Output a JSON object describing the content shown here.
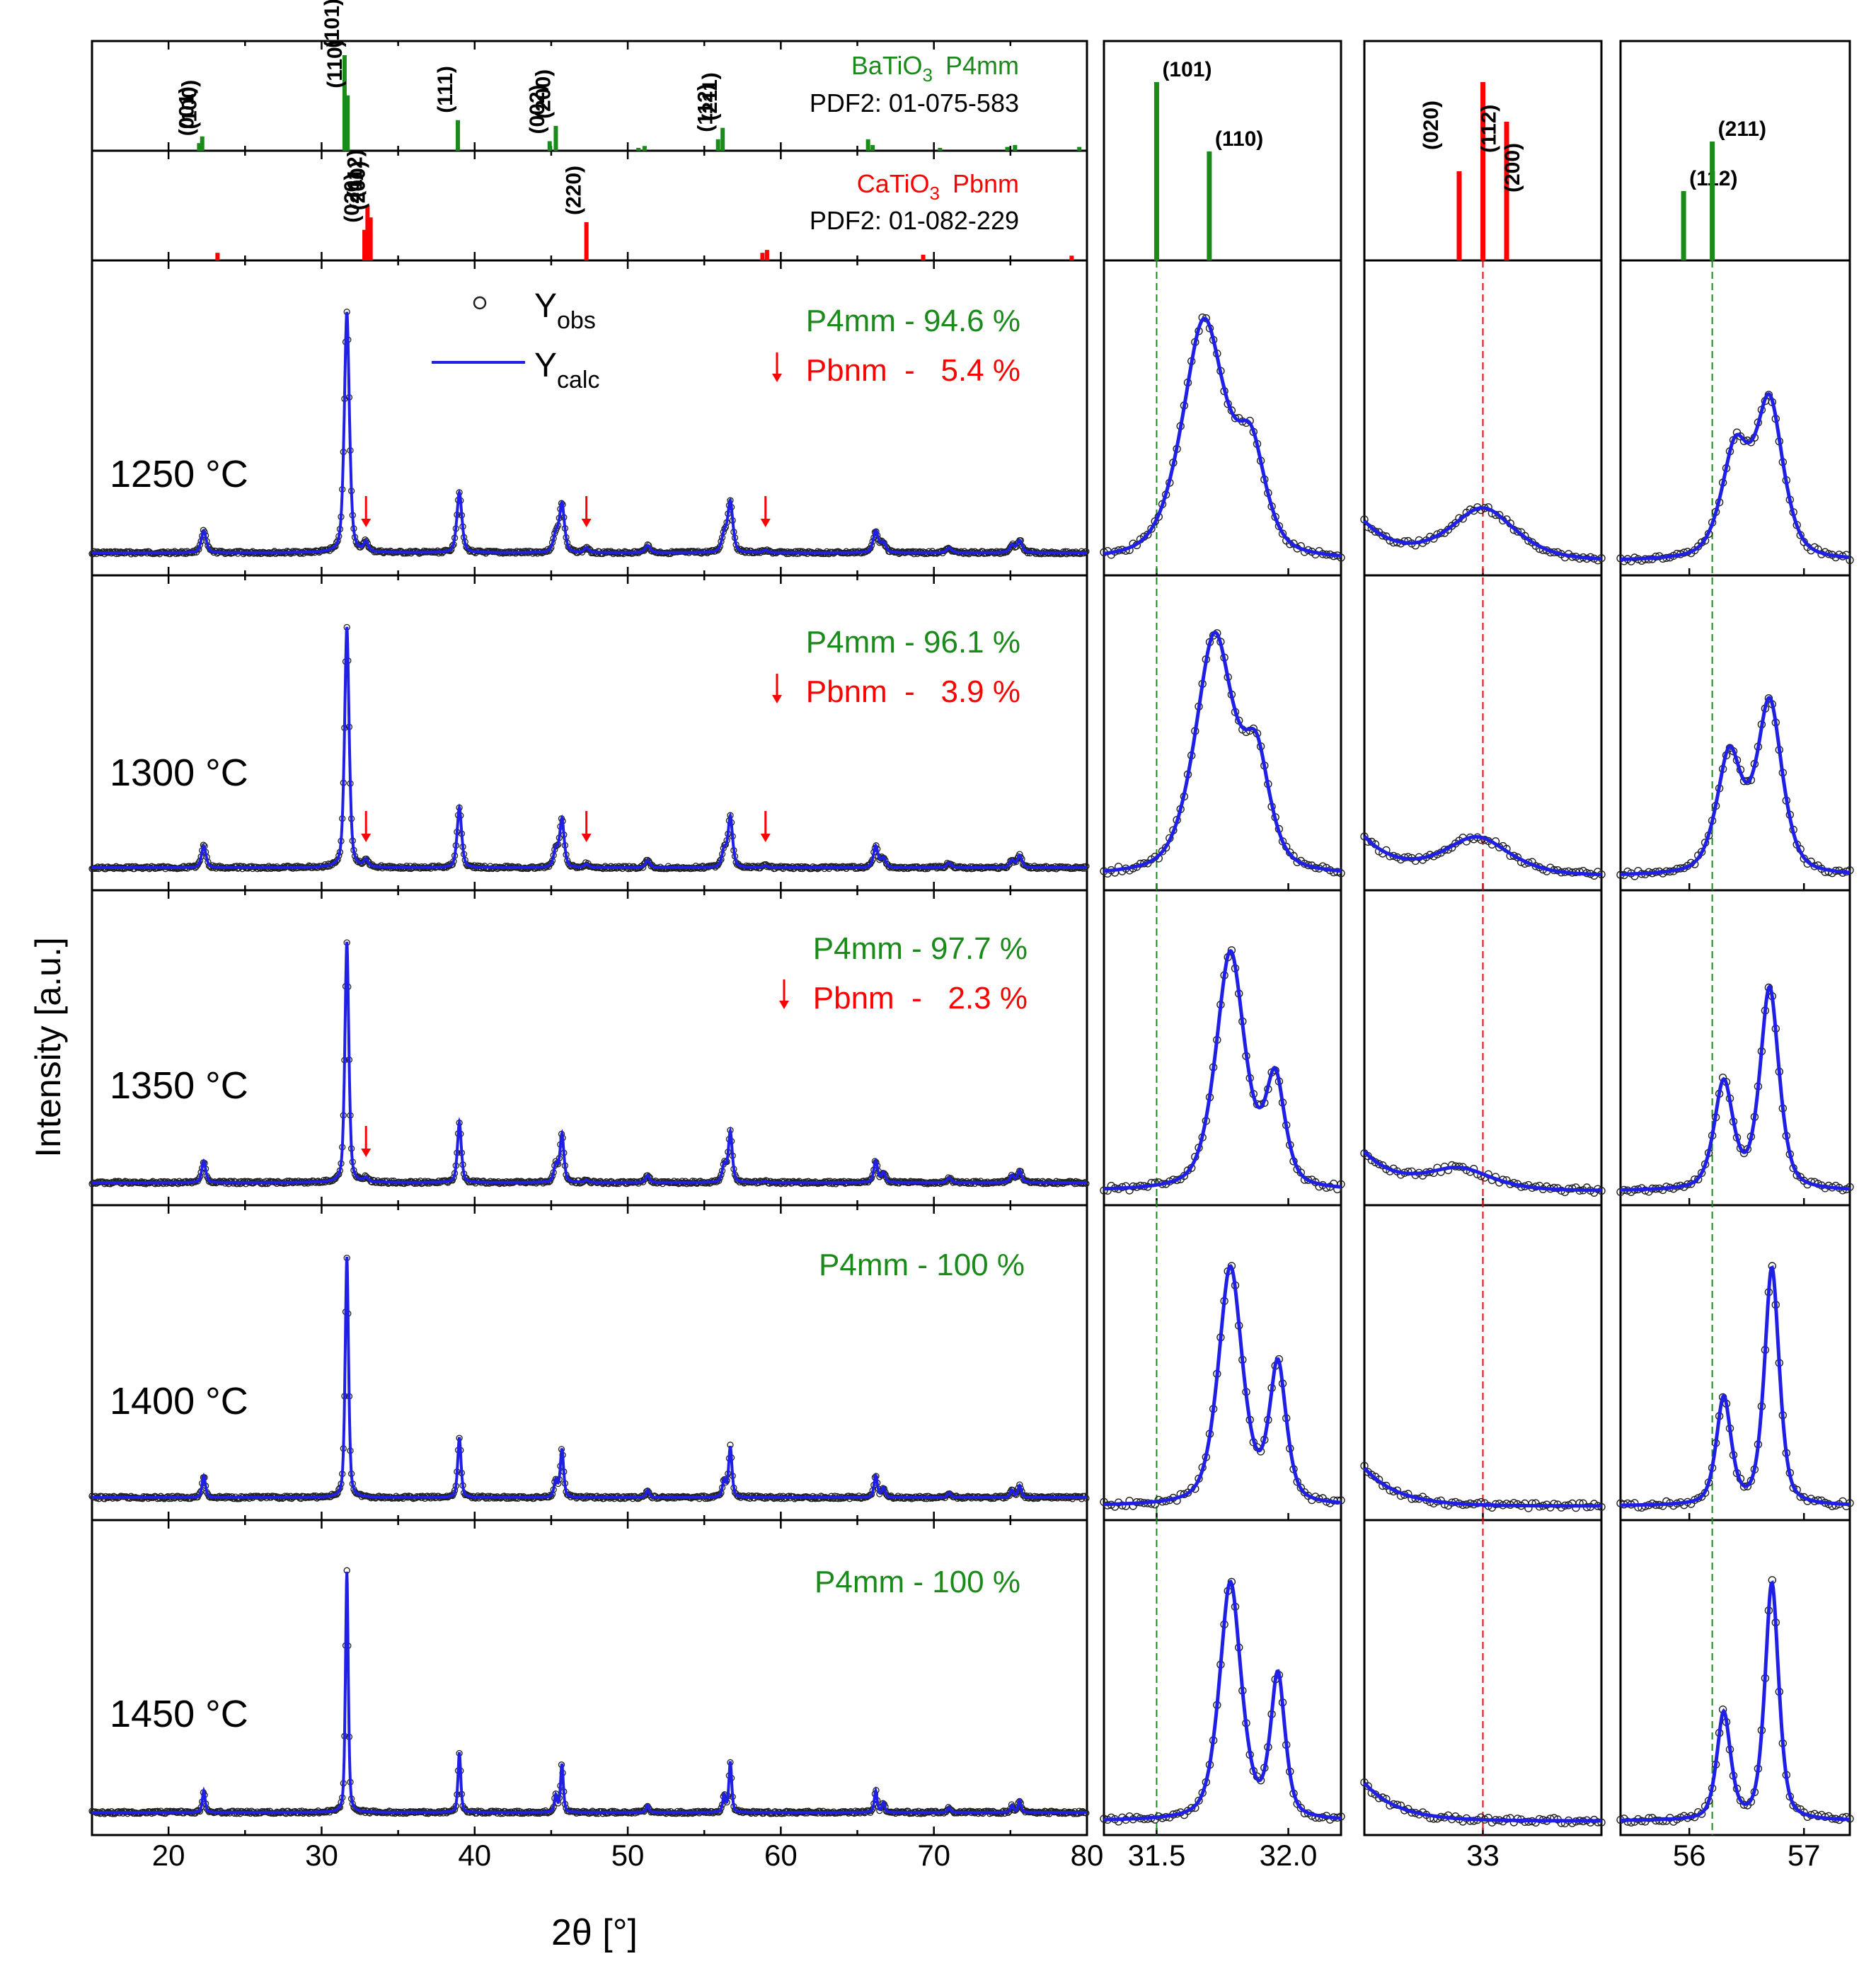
{
  "colors": {
    "bto": "#1a8a1a",
    "cto": "#ff0000",
    "calc": "#1f1fe6",
    "obs": "#222222",
    "axis": "#000000"
  },
  "chart_data": {
    "type": "line",
    "title": "",
    "xlabel": "2θ [°]",
    "ylabel": "Intensity [a.u.]",
    "legend": {
      "obs": "Y",
      "obs_sub": "obs",
      "calc": "Y",
      "calc_sub": "calc",
      "placement": "top-center of first pattern"
    },
    "references": [
      {
        "name": "BaTiO3",
        "name_main": "BaTiO",
        "name_sub": "3",
        "space_group": "P4mm",
        "pdf": "PDF2: 01-075-583",
        "color_key": "bto",
        "peaks": [
          {
            "x": 22.0,
            "h": 0.08,
            "label": "(001)"
          },
          {
            "x": 22.2,
            "h": 0.15,
            "label": "(100)"
          },
          {
            "x": 31.5,
            "h": 1.0,
            "label": "(101)"
          },
          {
            "x": 31.7,
            "h": 0.58,
            "label": "(110)"
          },
          {
            "x": 38.9,
            "h": 0.32,
            "label": "(111)"
          },
          {
            "x": 44.9,
            "h": 0.1,
            "label": "(002)"
          },
          {
            "x": 45.3,
            "h": 0.26,
            "label": "(200)"
          },
          {
            "x": 50.7,
            "h": 0.03,
            "label": ""
          },
          {
            "x": 51.1,
            "h": 0.05,
            "label": ""
          },
          {
            "x": 55.9,
            "h": 0.12,
            "label": "(112)"
          },
          {
            "x": 56.2,
            "h": 0.24,
            "label": "(211)"
          },
          {
            "x": 65.7,
            "h": 0.12,
            "label": ""
          },
          {
            "x": 66.0,
            "h": 0.06,
            "label": ""
          },
          {
            "x": 70.4,
            "h": 0.03,
            "label": ""
          },
          {
            "x": 74.8,
            "h": 0.04,
            "label": ""
          },
          {
            "x": 75.3,
            "h": 0.06,
            "label": ""
          },
          {
            "x": 79.5,
            "h": 0.04,
            "label": ""
          }
        ]
      },
      {
        "name": "CaTiO3",
        "name_main": "CaTiO",
        "name_sub": "3",
        "space_group": "Pbnm",
        "pdf": "PDF2: 01-082-229",
        "color_key": "cto",
        "peaks": [
          {
            "x": 23.2,
            "h": 0.08,
            "label": ""
          },
          {
            "x": 32.8,
            "h": 0.32,
            "label": "(020)"
          },
          {
            "x": 33.0,
            "h": 0.58,
            "label": "(112)"
          },
          {
            "x": 33.2,
            "h": 0.45,
            "label": "(200)"
          },
          {
            "x": 47.3,
            "h": 0.4,
            "label": "(220)"
          },
          {
            "x": 58.8,
            "h": 0.08,
            "label": ""
          },
          {
            "x": 59.1,
            "h": 0.11,
            "label": ""
          },
          {
            "x": 69.3,
            "h": 0.06,
            "label": ""
          },
          {
            "x": 79.0,
            "h": 0.05,
            "label": ""
          }
        ]
      }
    ],
    "main_xlim": [
      15,
      80
    ],
    "main_xticks": [
      "20",
      "30",
      "40",
      "50",
      "60",
      "70",
      "80"
    ],
    "patterns_baseline": [
      {
        "x": 22.3,
        "y": 0.09
      },
      {
        "x": 31.65,
        "y": 1.0
      },
      {
        "x": 39.0,
        "y": 0.25
      },
      {
        "x": 45.3,
        "y": 0.07
      },
      {
        "x": 45.7,
        "y": 0.2
      },
      {
        "x": 51.3,
        "y": 0.03
      },
      {
        "x": 56.3,
        "y": 0.07
      },
      {
        "x": 56.7,
        "y": 0.21
      },
      {
        "x": 66.2,
        "y": 0.09
      },
      {
        "x": 66.7,
        "y": 0.04
      },
      {
        "x": 71.0,
        "y": 0.02
      },
      {
        "x": 75.1,
        "y": 0.03
      },
      {
        "x": 75.6,
        "y": 0.05
      }
    ],
    "cto_peaks_in_pattern": [
      {
        "x": 32.9,
        "y": 0.04
      },
      {
        "x": 47.3,
        "y": 0.02
      },
      {
        "x": 59.0,
        "y": 0.01
      }
    ],
    "zoom_panels": [
      {
        "id": "z1",
        "xlim": [
          31.3,
          32.2
        ],
        "xticks": [
          "31.5",
          "32.0"
        ],
        "guide_x": 31.5,
        "guide_color": "bto"
      },
      {
        "id": "z2",
        "xlim": [
          32.0,
          34.0
        ],
        "xticks": [
          "33"
        ],
        "guide_x": 33.0,
        "guide_color": "cto"
      },
      {
        "id": "z3",
        "xlim": [
          55.4,
          57.4
        ],
        "xticks": [
          "56",
          "57"
        ],
        "guide_x": 56.2,
        "guide_color": "bto"
      }
    ],
    "temperatures": [
      {
        "label": "1250 °C",
        "phase1": "P4mm - 94.6 %",
        "phase2": "Pbnm  -   5.4 %",
        "cto_fraction": 0.054,
        "arrows": [
          32.9,
          47.3,
          59.0
        ],
        "z1_peaks": [
          {
            "x": 31.68,
            "h": 1.0,
            "w": 0.09
          },
          {
            "x": 31.86,
            "h": 0.4,
            "w": 0.06
          }
        ],
        "z2_peaks": [
          {
            "x": 33.0,
            "h": 0.22,
            "w": 0.3
          }
        ],
        "z3_peaks": [
          {
            "x": 56.4,
            "h": 0.45,
            "w": 0.13
          },
          {
            "x": 56.7,
            "h": 0.65,
            "w": 0.13
          }
        ]
      },
      {
        "label": "1300 °C",
        "phase1": "P4mm - 96.1 %",
        "phase2": "Pbnm  -   3.9 %",
        "cto_fraction": 0.039,
        "arrows": [
          32.9,
          47.3,
          59.0
        ],
        "z1_peaks": [
          {
            "x": 31.72,
            "h": 1.0,
            "w": 0.08
          },
          {
            "x": 31.88,
            "h": 0.43,
            "w": 0.055
          }
        ],
        "z2_peaks": [
          {
            "x": 32.95,
            "h": 0.16,
            "w": 0.3
          }
        ],
        "z3_peaks": [
          {
            "x": 56.35,
            "h": 0.5,
            "w": 0.12
          },
          {
            "x": 56.7,
            "h": 0.72,
            "w": 0.12
          }
        ]
      },
      {
        "label": "1350 °C",
        "phase1": "P4mm - 97.7 %",
        "phase2": "Pbnm  -   2.3 %",
        "cto_fraction": 0.023,
        "arrows": [
          32.9
        ],
        "z1_peaks": [
          {
            "x": 31.78,
            "h": 1.0,
            "w": 0.06
          },
          {
            "x": 31.95,
            "h": 0.45,
            "w": 0.04
          }
        ],
        "z2_peaks": [
          {
            "x": 32.8,
            "h": 0.09,
            "w": 0.3
          }
        ],
        "z3_peaks": [
          {
            "x": 56.3,
            "h": 0.45,
            "w": 0.09
          },
          {
            "x": 56.7,
            "h": 0.85,
            "w": 0.09
          }
        ]
      },
      {
        "label": "1400 °C",
        "phase1": "P4mm - 100 %",
        "phase2": "",
        "cto_fraction": 0.0,
        "arrows": [],
        "z1_peaks": [
          {
            "x": 31.78,
            "h": 1.0,
            "w": 0.05
          },
          {
            "x": 31.96,
            "h": 0.58,
            "w": 0.035
          }
        ],
        "z2_peaks": [],
        "z3_peaks": [
          {
            "x": 56.3,
            "h": 0.45,
            "w": 0.07
          },
          {
            "x": 56.72,
            "h": 1.0,
            "w": 0.07
          }
        ]
      },
      {
        "label": "1450 °C",
        "phase1": "P4mm - 100 %",
        "phase2": "",
        "cto_fraction": 0.0,
        "arrows": [],
        "z1_peaks": [
          {
            "x": 31.78,
            "h": 1.0,
            "w": 0.045
          },
          {
            "x": 31.96,
            "h": 0.6,
            "w": 0.03
          }
        ],
        "z2_peaks": [],
        "z3_peaks": [
          {
            "x": 56.3,
            "h": 0.45,
            "w": 0.065
          },
          {
            "x": 56.72,
            "h": 1.0,
            "w": 0.065
          }
        ]
      }
    ]
  }
}
